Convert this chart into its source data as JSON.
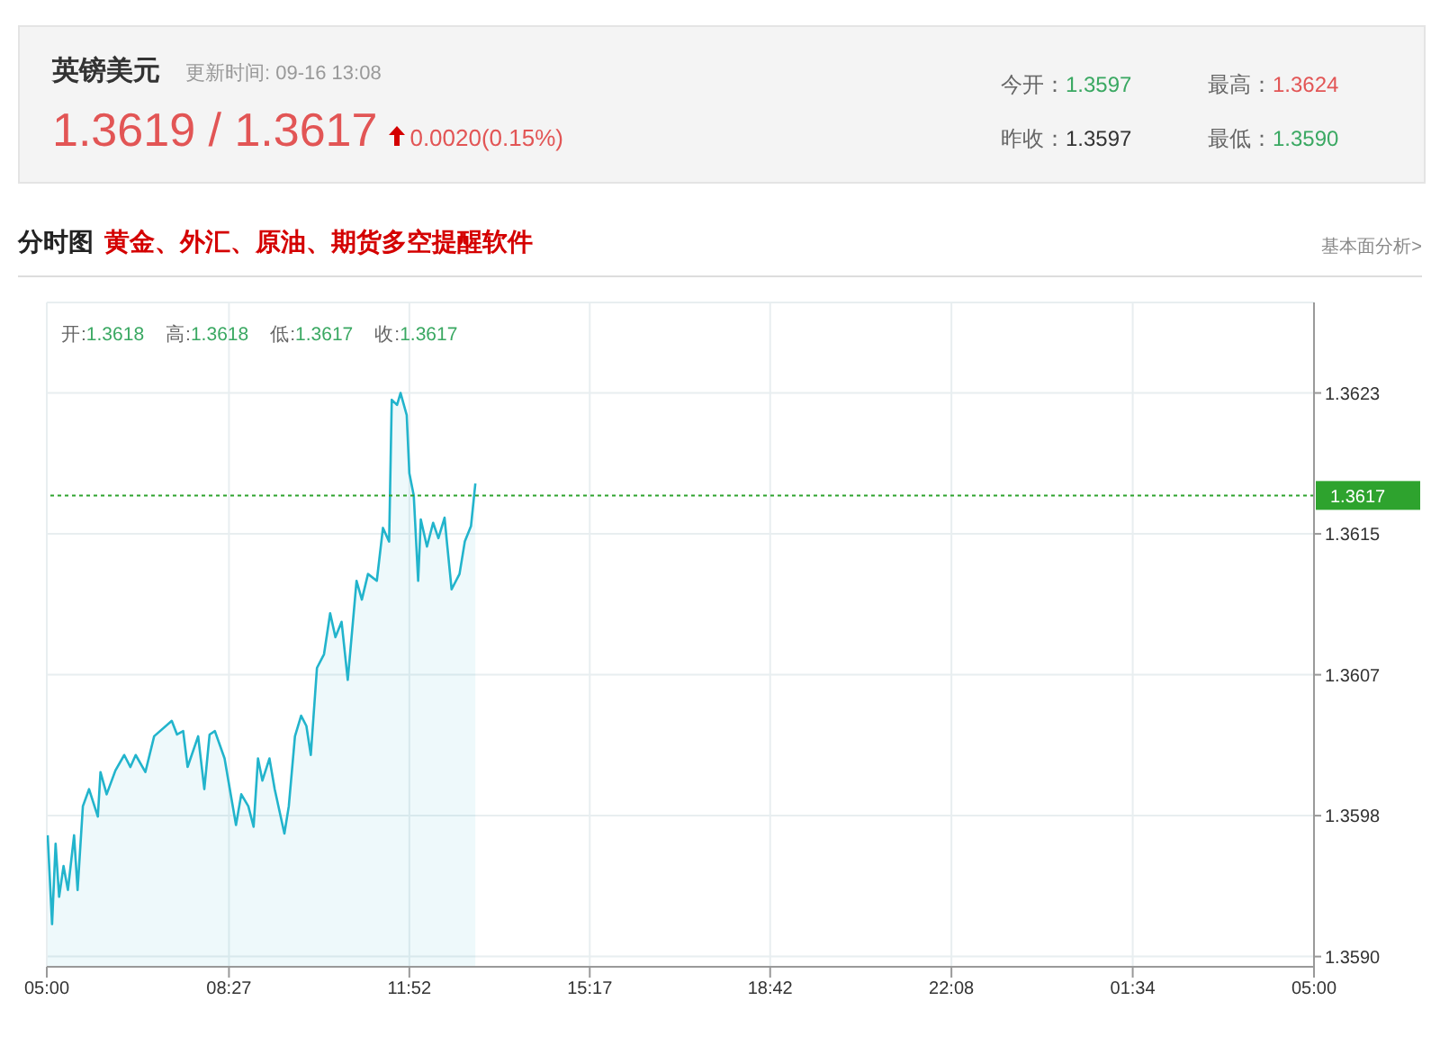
{
  "chart_data": {
    "type": "area",
    "title": "英镑美元",
    "subtitle": "更新时间: 09-16 13:08",
    "annotations": [
      "1.3619 / 1.3617",
      "0.0020(0.15%)",
      "今开：1.3597",
      "最高：1.3624",
      "昨收：1.3597",
      "最低：1.3590",
      "分时图",
      "黄金、外汇、原油、期货多空提醒软件",
      "基本面分析>",
      "开:1.3618 高:1.3618 低:1.3617 收:1.3617"
    ],
    "x": [
      "--09-16T05:01",
      "--09-16T05:06",
      "--09-16T05:10",
      "--09-16T05:14",
      "--09-16T05:19",
      "--09-16T05:24",
      "--09-16T05:31",
      "--09-16T05:35",
      "--09-16T05:41",
      "--09-16T05:48",
      "--09-16T05:58",
      "--09-16T06:01",
      "--09-16T06:08",
      "--09-16T06:18",
      "--09-16T06:28",
      "--09-16T06:35",
      "--09-16T06:41",
      "--09-16T06:52",
      "--09-16T07:02",
      "--09-16T07:22",
      "--09-16T07:28",
      "--09-16T07:35",
      "--09-16T07:40",
      "--09-16T07:52",
      "--09-16T07:59",
      "--09-16T08:05",
      "--09-16T08:11",
      "--09-16T08:22",
      "--09-16T08:28",
      "--09-16T08:35",
      "--09-16T08:41",
      "--09-16T08:49",
      "--09-16T08:55",
      "--09-16T09:00",
      "--09-16T09:05",
      "--09-16T09:13",
      "--09-16T09:19",
      "--09-16T09:30",
      "--09-16T09:35",
      "--09-16T09:42",
      "--09-16T09:49",
      "--09-16T09:55",
      "--09-16T10:00",
      "--09-16T10:07",
      "--09-16T10:15",
      "--09-16T10:22",
      "--09-16T10:28",
      "--09-16T10:35",
      "--09-16T10:42",
      "--09-16T10:52",
      "--09-16T10:58",
      "--09-16T11:05",
      "--09-16T11:15",
      "--09-16T11:22",
      "--09-16T11:29",
      "--09-16T11:32",
      "--09-16T11:38",
      "--09-16T11:42",
      "--09-16T11:49",
      "--09-16T11:52",
      "--09-16T11:57",
      "--09-16T12:02",
      "--09-16T12:05",
      "--09-16T12:12",
      "--09-16T12:19",
      "--09-16T12:25",
      "--09-16T12:32",
      "--09-16T12:35",
      "--09-16T12:40",
      "--09-16T12:49",
      "--09-16T12:55",
      "--09-16T13:02",
      "--09-16T13:07"
    ],
    "series": [
      {
        "color": "#22b4cc",
        "values": [
          1.35971,
          1.35919,
          1.35966,
          1.35935,
          1.35953,
          1.35939,
          1.35971,
          1.35939,
          1.35988,
          1.35998,
          1.35982,
          1.36008,
          1.35995,
          1.36009,
          1.36018,
          1.36011,
          1.36018,
          1.36008,
          1.36029,
          1.36038,
          1.3603,
          1.36032,
          1.36011,
          1.36029,
          1.35998,
          1.3603,
          1.36032,
          1.36016,
          1.35998,
          1.35977,
          1.35995,
          1.35988,
          1.35976,
          1.36016,
          1.36003,
          1.36016,
          1.35998,
          1.35972,
          1.35988,
          1.36029,
          1.36041,
          1.36035,
          1.36018,
          1.36069,
          1.36077,
          1.36101,
          1.36087,
          1.36096,
          1.36062,
          1.3612,
          1.36109,
          1.36124,
          1.3612,
          1.36151,
          1.36143,
          1.36226,
          1.36223,
          1.3623,
          1.36217,
          1.36183,
          1.3617,
          1.3612,
          1.36156,
          1.3614,
          1.36154,
          1.36145,
          1.36157,
          1.36141,
          1.36115,
          1.36124,
          1.36143,
          1.36152,
          1.36177
        ]
      }
    ],
    "xlim": [
      "--09-16T05:00",
      "--09-17T05:00"
    ],
    "xticks": [
      {
        "value": "--09-16T05:00",
        "label": "05:00"
      },
      {
        "value": "--09-16T08:27",
        "label": "08:27"
      },
      {
        "value": "--09-16T11:52",
        "label": "11:52"
      },
      {
        "value": "--09-16T15:17",
        "label": "15:17"
      },
      {
        "value": "--09-16T18:42",
        "label": "18:42"
      },
      {
        "value": "--09-16T22:08",
        "label": "22:08"
      },
      {
        "value": "--09-17T01:34",
        "label": "01:34"
      },
      {
        "value": "--09-17T05:00",
        "label": "05:00"
      }
    ],
    "ylim": [
      1.35894,
      1.36283
    ],
    "yticks": [
      {
        "value": 1.359,
        "label": "1.3590"
      },
      {
        "value": 1.359825,
        "label": "1.3598"
      },
      {
        "value": 1.36065,
        "label": "1.3607"
      },
      {
        "value": 1.361475,
        "label": "1.3615"
      },
      {
        "value": 1.3623,
        "label": "1.3623"
      }
    ],
    "ref_lines": [
      {
        "axis": "y",
        "value": 1.3617,
        "label": "1.3617",
        "color": "#2ea32e",
        "line_style": "dotted"
      }
    ],
    "grid": true
  }
}
